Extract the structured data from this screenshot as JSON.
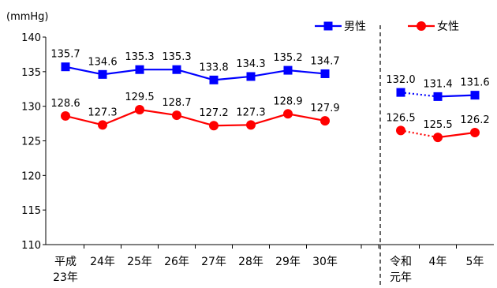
{
  "chart_data": {
    "type": "line",
    "ylabel": "(mmHg)",
    "ylim": [
      110,
      140
    ],
    "yticks": [
      110,
      115,
      120,
      125,
      130,
      135,
      140
    ],
    "categories": [
      "平成23年",
      "24年",
      "25年",
      "26年",
      "27年",
      "28年",
      "29年",
      "30年",
      "令和元年",
      "4年",
      "5年"
    ],
    "category_display": [
      [
        "平成",
        "23年"
      ],
      [
        "24年"
      ],
      [
        "25年"
      ],
      [
        "26年"
      ],
      [
        "27年"
      ],
      [
        "28年"
      ],
      [
        "29年"
      ],
      [
        "30年"
      ],
      [
        "令和",
        "元年"
      ],
      [
        "4年"
      ],
      [
        "5年"
      ]
    ],
    "series": [
      {
        "name": "男性",
        "color": "#0000FF",
        "marker": "square",
        "values": [
          135.7,
          134.6,
          135.3,
          135.3,
          133.8,
          134.3,
          135.2,
          134.7,
          132.0,
          131.4,
          131.6
        ]
      },
      {
        "name": "女性",
        "color": "#FF0000",
        "marker": "circle",
        "values": [
          128.6,
          127.3,
          129.5,
          128.7,
          127.2,
          127.3,
          128.9,
          127.9,
          126.5,
          125.5,
          126.2
        ]
      }
    ],
    "segment_break_after_index": 7,
    "legend_position": "top-right",
    "grid": false
  }
}
